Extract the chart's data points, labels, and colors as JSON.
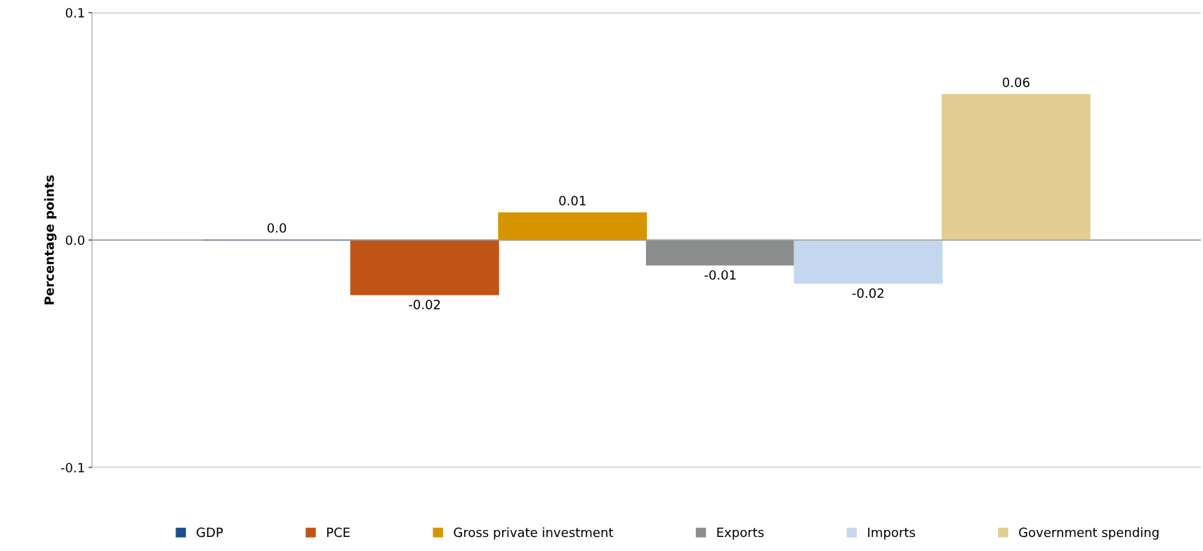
{
  "chart_data": {
    "type": "bar",
    "ylabel": "Percentage points",
    "categories": [
      null
    ],
    "series": [
      {
        "name": "GDP",
        "color": "#1f4e8c",
        "values": [
          0.0
        ],
        "value_labels": [
          "0.0"
        ]
      },
      {
        "name": "PCE",
        "color": "#c05417",
        "values": [
          -0.024
        ],
        "value_labels": [
          "-0.02"
        ]
      },
      {
        "name": "Gross private investment",
        "color": "#d69500",
        "values": [
          0.012
        ],
        "value_labels": [
          "0.01"
        ]
      },
      {
        "name": "Exports",
        "color": "#8c8e8e",
        "values": [
          -0.011
        ],
        "value_labels": [
          "-0.01"
        ]
      },
      {
        "name": "Imports",
        "color": "#c5d7ee",
        "values": [
          -0.019
        ],
        "value_labels": [
          "-0.02"
        ]
      },
      {
        "name": "Government spending",
        "color": "#e3cd92",
        "values": [
          0.064
        ],
        "value_labels": [
          "0.06"
        ]
      }
    ],
    "ylim": [
      -0.1,
      0.1
    ],
    "yticks": [
      {
        "value": -0.1,
        "label": "-0.1"
      },
      {
        "value": 0.0,
        "label": "0.0"
      },
      {
        "value": 0.1,
        "label": "0.1"
      }
    ],
    "grid": "y",
    "legend": "bottom"
  }
}
